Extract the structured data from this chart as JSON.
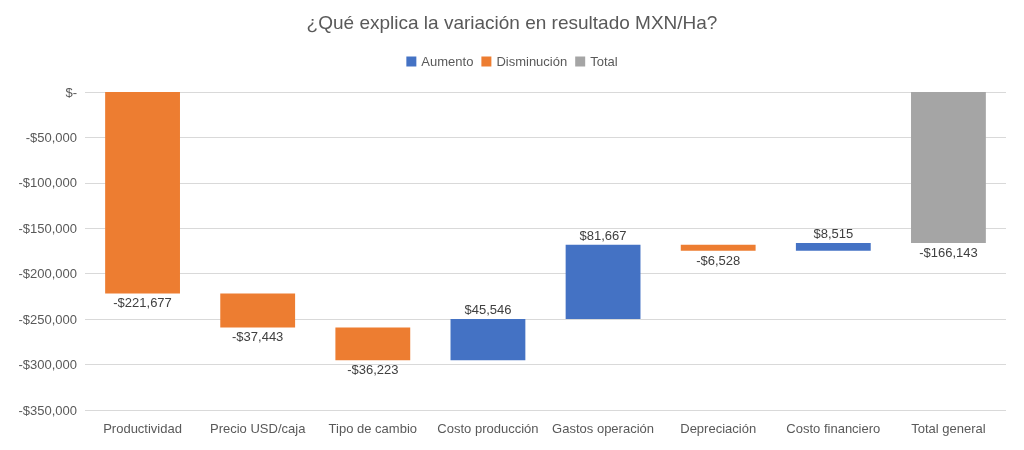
{
  "chart_data": {
    "type": "bar",
    "title": "¿Qué explica la variación en resultado MXN/Ha?",
    "categories": [
      "Productividad",
      "Precio USD/caja",
      "Tipo de cambio",
      "Costo producción",
      "Gastos operación",
      "Depreciación",
      "Costo financiero",
      "Total general"
    ],
    "series": [
      {
        "name": "Aumento",
        "color": "#4472c4",
        "base": [
          null,
          null,
          null,
          -295343,
          -249797,
          null,
          -174658,
          null
        ],
        "values": [
          null,
          null,
          null,
          45546,
          81667,
          null,
          8515,
          null
        ],
        "value_labels": [
          null,
          null,
          null,
          "$45,546",
          "$81,667",
          null,
          "$8,515",
          null
        ]
      },
      {
        "name": "Disminución",
        "color": "#ed7d31",
        "base": [
          0,
          -221677,
          -259120,
          null,
          null,
          -168130,
          null,
          null
        ],
        "values": [
          -221677,
          -37443,
          -36223,
          null,
          null,
          -6528,
          null,
          null
        ],
        "value_labels": [
          "-$221,677",
          "-$37,443",
          "-$36,223",
          null,
          null,
          "-$6,528",
          null,
          null
        ]
      },
      {
        "name": "Total",
        "color": "#a5a5a5",
        "base": [
          null,
          null,
          null,
          null,
          null,
          null,
          null,
          0
        ],
        "values": [
          null,
          null,
          null,
          null,
          null,
          null,
          null,
          -166143
        ],
        "value_labels": [
          null,
          null,
          null,
          null,
          null,
          null,
          null,
          "-$166,143"
        ]
      }
    ],
    "ylim": [
      -350000,
      0
    ],
    "yticks": [
      {
        "value": -350000,
        "label": "-$350,000"
      },
      {
        "value": -300000,
        "label": "-$300,000"
      },
      {
        "value": -250000,
        "label": "-$250,000"
      },
      {
        "value": -200000,
        "label": "-$200,000"
      },
      {
        "value": -150000,
        "label": "-$150,000"
      },
      {
        "value": -100000,
        "label": "-$100,000"
      },
      {
        "value": -50000,
        "label": "-$50,000"
      },
      {
        "value": 0,
        "label": "$-"
      }
    ],
    "grid": "y",
    "legend": "top"
  }
}
